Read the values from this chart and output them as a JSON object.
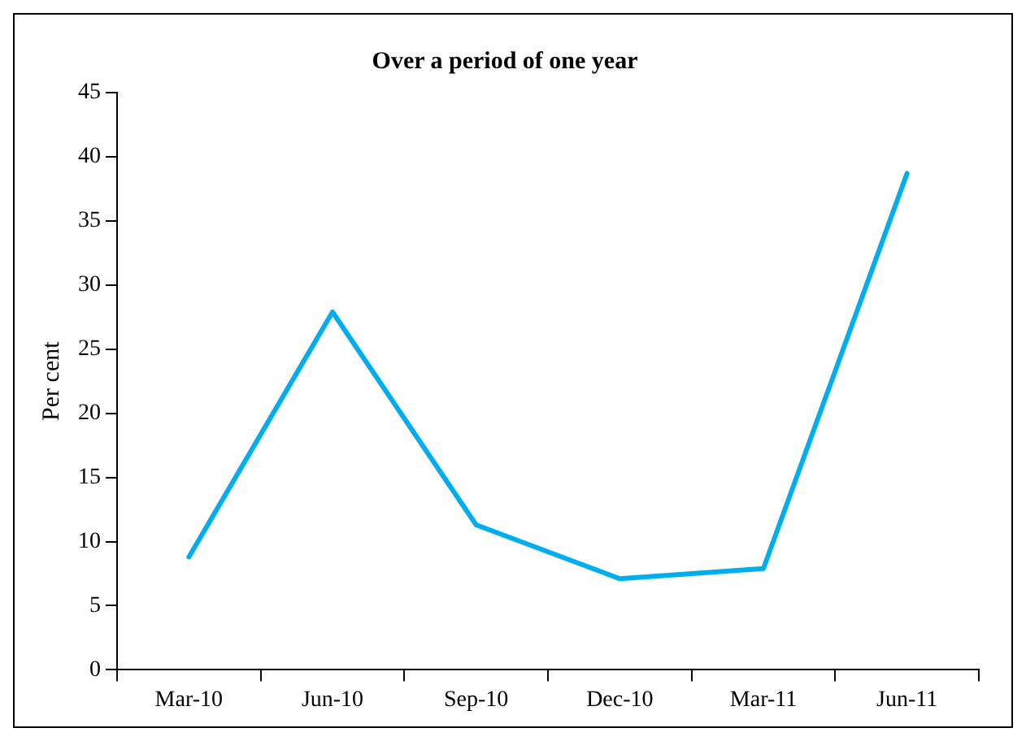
{
  "chart_data": {
    "type": "line",
    "title": "Over a period of one year",
    "ylabel": "Per cent",
    "categories": [
      "Mar-10",
      "Jun-10",
      "Sep-10",
      "Dec-10",
      "Mar-11",
      "Jun-11"
    ],
    "series": [
      {
        "color": "#00aeef",
        "values": [
          8.8,
          27.9,
          11.3,
          7.1,
          7.9,
          38.7
        ]
      }
    ],
    "ylim": [
      0,
      45
    ],
    "yticks": [
      0,
      5,
      10,
      15,
      20,
      25,
      30,
      35,
      40,
      45
    ],
    "marker": "none",
    "line_style": "solid"
  }
}
